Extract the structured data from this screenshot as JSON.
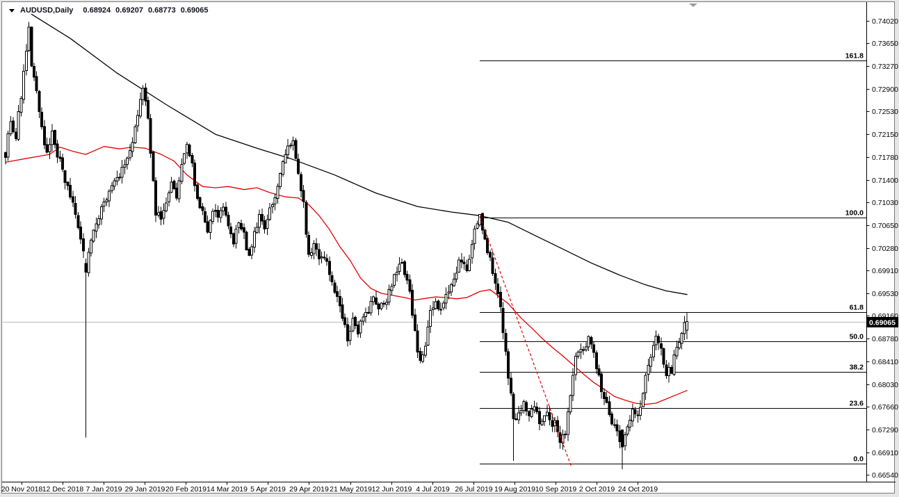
{
  "window": {
    "title": {
      "symbol_period": "AUDUSD,Daily",
      "open": "0.68924",
      "high": "0.69207",
      "low": "0.68773",
      "close": "0.69065"
    }
  },
  "colors": {
    "up_candle": "#ffffff",
    "down_candle": "#000000",
    "candle_outline": "#000000",
    "ma_slow": "#000000",
    "ma_fast": "#e60000",
    "trendline": "#e60000",
    "fib_line": "#000000",
    "fib_label": "#000000",
    "current_price_line": "#b8b8b8",
    "price_tag_bg": "#000000",
    "price_tag_text": "#ffffff",
    "axis_text": "#000000",
    "axis_line": "#000000",
    "scroll_marker": "#9a9a9a"
  },
  "chart_data": {
    "type": "candlestick",
    "symbol": "AUDUSD",
    "timeframe": "Daily",
    "last_ohlc": {
      "open": 0.68924,
      "high": 0.69207,
      "low": 0.68773,
      "close": 0.69065
    },
    "current_price": {
      "value": 0.69065,
      "label": "0.69065"
    },
    "y_axis": {
      "top": 0.7402,
      "bottom": 0.6654,
      "ticks": [
        "0.74020",
        "0.73650",
        "0.73270",
        "0.72900",
        "0.72530",
        "0.72150",
        "0.71780",
        "0.71400",
        "0.71030",
        "0.70650",
        "0.70280",
        "0.69910",
        "0.69530",
        "0.69160",
        "0.68780",
        "0.68410",
        "0.68030",
        "0.67660",
        "0.67290",
        "0.66910",
        "0.66540"
      ]
    },
    "x_axis": {
      "labels": [
        "20 Nov 2018",
        "12 Dec 2018",
        "7 Jan 2019",
        "29 Jan 2019",
        "20 Feb 2019",
        "14 Mar 2019",
        "5 Apr 2019",
        "29 Apr 2019",
        "21 May 2019",
        "12 Jun 2019",
        "4 Jul 2019",
        "26 Jul 2019",
        "19 Aug 2019",
        "10 Sep 2019",
        "2 Oct 2019",
        "24 Oct 2019"
      ]
    },
    "candles": {
      "count": 264,
      "close_path": [
        [
          0,
          0.7185
        ],
        [
          2,
          0.724
        ],
        [
          4,
          0.721
        ],
        [
          6,
          0.728
        ],
        [
          8,
          0.735
        ],
        [
          9,
          0.7385
        ],
        [
          10,
          0.733
        ],
        [
          12,
          0.728
        ],
        [
          14,
          0.723
        ],
        [
          16,
          0.718
        ],
        [
          18,
          0.7215
        ],
        [
          20,
          0.718
        ],
        [
          22,
          0.7155
        ],
        [
          24,
          0.7125
        ],
        [
          26,
          0.7095
        ],
        [
          28,
          0.706
        ],
        [
          30,
          0.7015
        ],
        [
          31,
          0.699
        ],
        [
          33,
          0.704
        ],
        [
          35,
          0.7075
        ],
        [
          38,
          0.71
        ],
        [
          41,
          0.7125
        ],
        [
          44,
          0.7145
        ],
        [
          47,
          0.7175
        ],
        [
          50,
          0.722
        ],
        [
          52,
          0.7265
        ],
        [
          53,
          0.729
        ],
        [
          55,
          0.7245
        ],
        [
          56,
          0.718
        ],
        [
          58,
          0.7085
        ],
        [
          60,
          0.7075
        ],
        [
          62,
          0.711
        ],
        [
          64,
          0.714
        ],
        [
          66,
          0.7112
        ],
        [
          68,
          0.7165
        ],
        [
          70,
          0.7195
        ],
        [
          72,
          0.716
        ],
        [
          74,
          0.7115
        ],
        [
          76,
          0.7082
        ],
        [
          78,
          0.7052
        ],
        [
          80,
          0.7092
        ],
        [
          82,
          0.7075
        ],
        [
          84,
          0.7098
        ],
        [
          86,
          0.706
        ],
        [
          88,
          0.7032
        ],
        [
          90,
          0.7072
        ],
        [
          92,
          0.7048
        ],
        [
          94,
          0.7012
        ],
        [
          96,
          0.7048
        ],
        [
          98,
          0.7082
        ],
        [
          100,
          0.7055
        ],
        [
          102,
          0.7088
        ],
        [
          104,
          0.7118
        ],
        [
          106,
          0.7148
        ],
        [
          108,
          0.7178
        ],
        [
          110,
          0.7198
        ],
        [
          111,
          0.7202
        ],
        [
          113,
          0.7152
        ],
        [
          115,
          0.7098
        ],
        [
          117,
          0.7018
        ],
        [
          119,
          0.7038
        ],
        [
          121,
          0.7002
        ],
        [
          123,
          0.7015
        ],
        [
          125,
          0.6988
        ],
        [
          127,
          0.6962
        ],
        [
          129,
          0.6928
        ],
        [
          131,
          0.6895
        ],
        [
          132,
          0.6878
        ],
        [
          134,
          0.6908
        ],
        [
          136,
          0.6882
        ],
        [
          138,
          0.6918
        ],
        [
          140,
          0.6928
        ],
        [
          142,
          0.6942
        ],
        [
          144,
          0.6925
        ],
        [
          146,
          0.6935
        ],
        [
          148,
          0.6952
        ],
        [
          150,
          0.6982
        ],
        [
          152,
          0.7008
        ],
        [
          154,
          0.6988
        ],
        [
          156,
          0.6952
        ],
        [
          158,
          0.6892
        ],
        [
          160,
          0.6835
        ],
        [
          162,
          0.6872
        ],
        [
          164,
          0.6918
        ],
        [
          166,
          0.6942
        ],
        [
          168,
          0.6928
        ],
        [
          170,
          0.695
        ],
        [
          172,
          0.6975
        ],
        [
          174,
          0.6992
        ],
        [
          176,
          0.7012
        ],
        [
          178,
          0.6992
        ],
        [
          180,
          0.7038
        ],
        [
          182,
          0.7068
        ],
        [
          183,
          0.7078
        ],
        [
          185,
          0.7045
        ],
        [
          187,
          0.701
        ],
        [
          189,
          0.6965
        ],
        [
          191,
          0.6928
        ],
        [
          193,
          0.6852
        ],
        [
          195,
          0.6782
        ],
        [
          196,
          0.6745
        ],
        [
          198,
          0.6752
        ],
        [
          200,
          0.6772
        ],
        [
          202,
          0.6748
        ],
        [
          204,
          0.6762
        ],
        [
          206,
          0.6738
        ],
        [
          208,
          0.6758
        ],
        [
          210,
          0.6742
        ],
        [
          212,
          0.674
        ],
        [
          214,
          0.6705
        ],
        [
          216,
          0.6722
        ],
        [
          218,
          0.679
        ],
        [
          220,
          0.6845
        ],
        [
          223,
          0.686
        ],
        [
          225,
          0.6885
        ],
        [
          228,
          0.6835
        ],
        [
          230,
          0.679
        ],
        [
          233,
          0.6755
        ],
        [
          236,
          0.6725
        ],
        [
          238,
          0.67
        ],
        [
          240,
          0.6737
        ],
        [
          242,
          0.6762
        ],
        [
          244,
          0.6748
        ],
        [
          246,
          0.6782
        ],
        [
          248,
          0.684
        ],
        [
          251,
          0.688
        ],
        [
          253,
          0.6862
        ],
        [
          255,
          0.6818
        ],
        [
          257,
          0.6828
        ],
        [
          259,
          0.6862
        ],
        [
          261,
          0.6892
        ],
        [
          263,
          0.69065
        ]
      ],
      "specials": {
        "9": {
          "h": 0.74
        },
        "31": {
          "o": 0.7002,
          "c": 0.6988,
          "h": 0.701,
          "l": 0.6715
        },
        "53": {
          "h": 0.7296
        },
        "183": {
          "h": 0.7082
        },
        "196": {
          "l": 0.6677
        },
        "238": {
          "o": 0.6728,
          "c": 0.67,
          "l": 0.6663
        },
        "263": {
          "o": 0.68924,
          "h": 0.69207,
          "l": 0.68773,
          "c": 0.69065
        }
      }
    },
    "moving_averages": [
      {
        "name": "slow-ma",
        "color_key": "ma_slow",
        "points": [
          [
            10,
            0.7413
          ],
          [
            25,
            0.7373
          ],
          [
            43,
            0.7316
          ],
          [
            62,
            0.7264
          ],
          [
            81,
            0.7215
          ],
          [
            97,
            0.7192
          ],
          [
            110,
            0.7175
          ],
          [
            127,
            0.7148
          ],
          [
            143,
            0.7118
          ],
          [
            159,
            0.7096
          ],
          [
            172,
            0.7087
          ],
          [
            183,
            0.7081
          ],
          [
            194,
            0.707
          ],
          [
            204,
            0.7049
          ],
          [
            215,
            0.7026
          ],
          [
            226,
            0.7003
          ],
          [
            237,
            0.6983
          ],
          [
            247,
            0.6967
          ],
          [
            255,
            0.6957
          ],
          [
            263,
            0.6951
          ]
        ]
      },
      {
        "name": "fast-ma",
        "color_key": "ma_fast",
        "points": [
          [
            0,
            0.7169
          ],
          [
            9,
            0.7176
          ],
          [
            17,
            0.7182
          ],
          [
            21,
            0.7194
          ],
          [
            26,
            0.7187
          ],
          [
            31,
            0.7182
          ],
          [
            38,
            0.7195
          ],
          [
            44,
            0.7191
          ],
          [
            49,
            0.7194
          ],
          [
            54,
            0.7192
          ],
          [
            60,
            0.7182
          ],
          [
            65,
            0.7171
          ],
          [
            70,
            0.7148
          ],
          [
            76,
            0.7129
          ],
          [
            81,
            0.7127
          ],
          [
            86,
            0.7129
          ],
          [
            92,
            0.7124
          ],
          [
            97,
            0.7127
          ],
          [
            102,
            0.7119
          ],
          [
            108,
            0.7112
          ],
          [
            113,
            0.711
          ],
          [
            117,
            0.7099
          ],
          [
            121,
            0.7081
          ],
          [
            125,
            0.7058
          ],
          [
            129,
            0.703
          ],
          [
            133,
            0.7007
          ],
          [
            137,
            0.6978
          ],
          [
            141,
            0.6961
          ],
          [
            145,
            0.6953
          ],
          [
            149,
            0.695
          ],
          [
            154,
            0.6946
          ],
          [
            158,
            0.6942
          ],
          [
            161,
            0.6944
          ],
          [
            166,
            0.6947
          ],
          [
            170,
            0.6946
          ],
          [
            174,
            0.6944
          ],
          [
            178,
            0.6946
          ],
          [
            183,
            0.6956
          ],
          [
            187,
            0.6959
          ],
          [
            194,
            0.6936
          ],
          [
            199,
            0.6912
          ],
          [
            203,
            0.6896
          ],
          [
            207,
            0.6879
          ],
          [
            211,
            0.6864
          ],
          [
            215,
            0.685
          ],
          [
            219,
            0.6835
          ],
          [
            223,
            0.682
          ],
          [
            227,
            0.6806
          ],
          [
            231,
            0.6795
          ],
          [
            235,
            0.6783
          ],
          [
            239,
            0.6777
          ],
          [
            243,
            0.6772
          ],
          [
            247,
            0.677
          ],
          [
            251,
            0.6772
          ],
          [
            255,
            0.6779
          ],
          [
            259,
            0.6786
          ],
          [
            263,
            0.6793
          ]
        ]
      }
    ],
    "trendline": {
      "style": "dashed",
      "color_key": "trendline",
      "from": [
        183,
        0.708
      ],
      "to": [
        218.4,
        0.66666
      ]
    },
    "fibonacci": {
      "start_index": 183,
      "levels": [
        {
          "label": "161.8",
          "price": 0.73365
        },
        {
          "label": "100.0",
          "price": 0.70777
        },
        {
          "label": "61.8",
          "price": 0.69225
        },
        {
          "label": "50.0",
          "price": 0.68742
        },
        {
          "label": "38.2",
          "price": 0.68236
        },
        {
          "label": "23.6",
          "price": 0.67638
        },
        {
          "label": "0.0",
          "price": 0.66718
        }
      ]
    }
  }
}
